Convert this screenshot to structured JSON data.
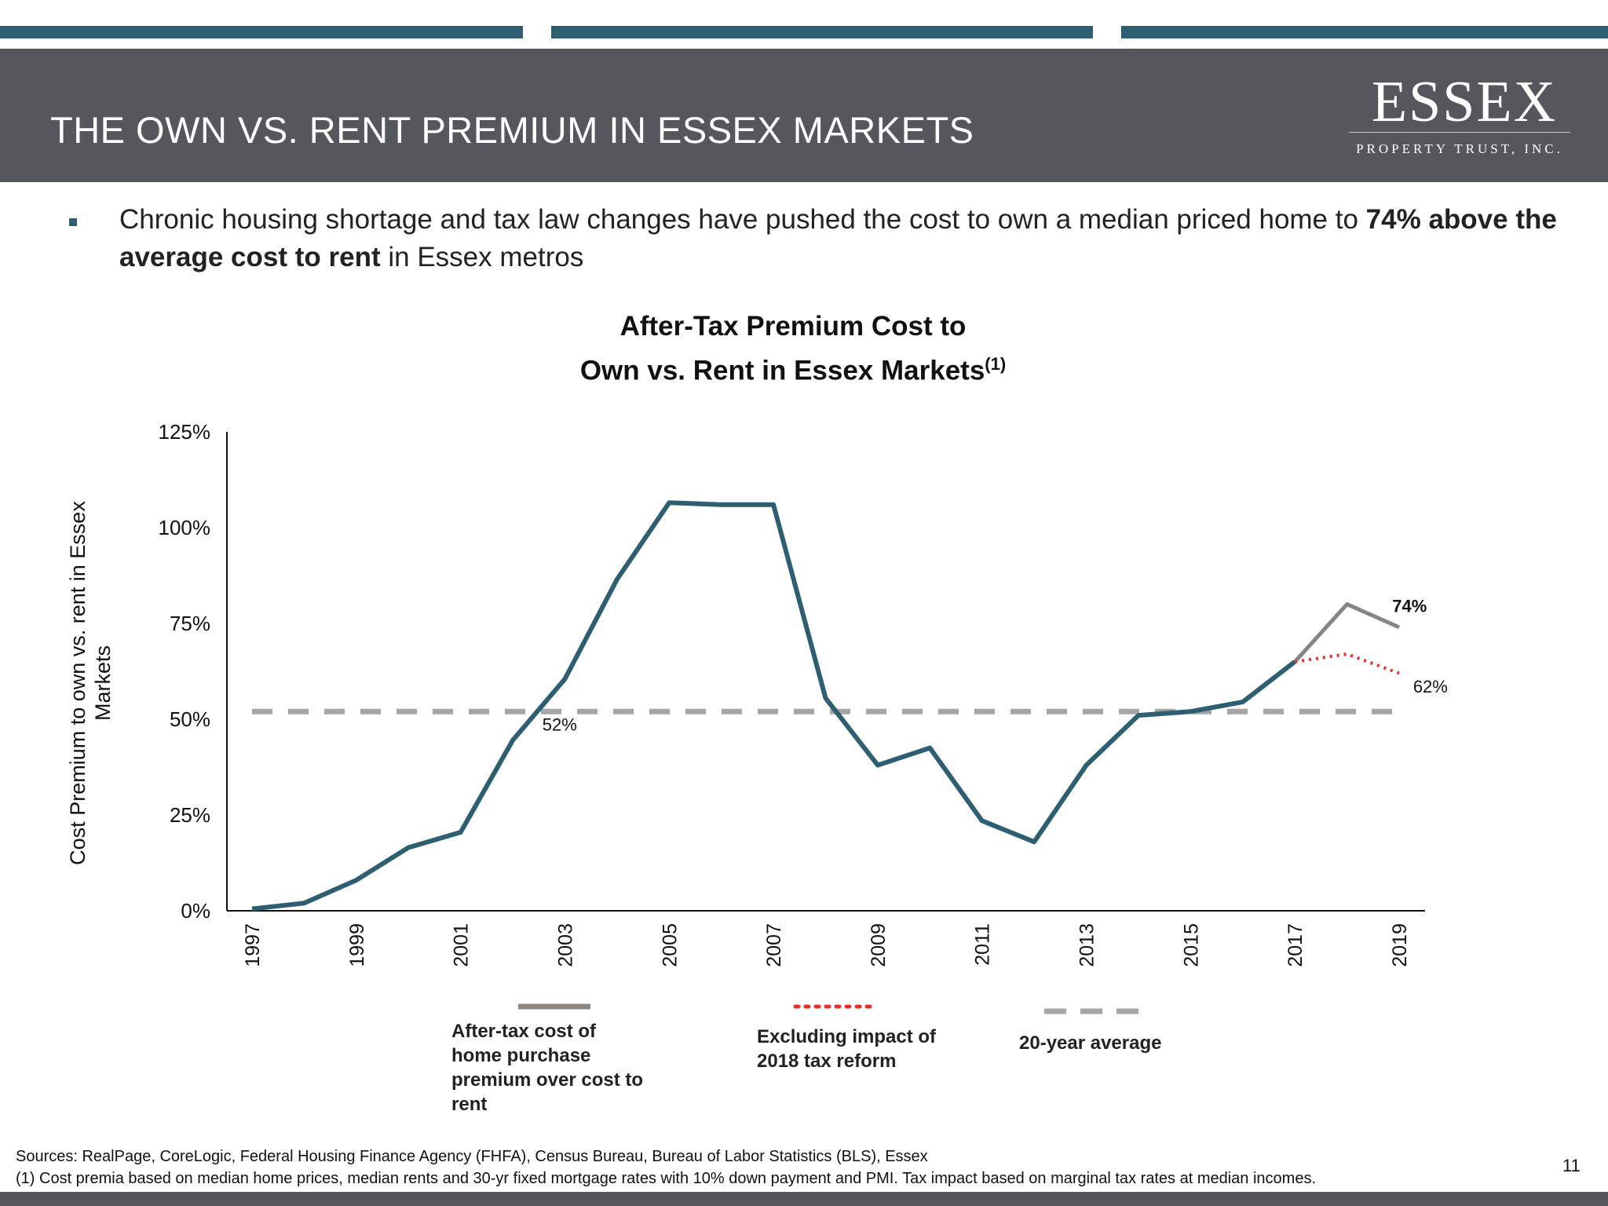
{
  "slide": {
    "title": "THE OWN VS. RENT PREMIUM IN ESSEX MARKETS",
    "logo_name": "ESSEX",
    "logo_sub": "PROPERTY TRUST, INC.",
    "bullet_part1": "Chronic housing shortage and tax law changes have pushed the cost to own a median priced home to ",
    "bullet_bold": "74% above the average cost to rent",
    "bullet_part2": " in Essex metros",
    "sources": "Sources: RealPage, CoreLogic, Federal Housing Finance Agency (FHFA), Census Bureau, Bureau of Labor Statistics (BLS), Essex",
    "footnote": "(1) Cost premia based on median home prices, median rents and 30-yr fixed mortgage rates with 10% down payment and PMI. Tax impact based on marginal tax rates at median incomes.",
    "page_number": "11"
  },
  "colors": {
    "header_bg": "#54575b",
    "accent": "#2d5e72",
    "premium_line": "#2d5e72",
    "after_tax_line": "#858585",
    "excl_tax_reform_line": "#e8302a",
    "average_line": "#a6a6a6"
  },
  "chart_data": {
    "type": "line",
    "title_line1": "After-Tax Premium Cost to",
    "title_line2": "Own vs. Rent in Essex Markets",
    "title_superscript": "(1)",
    "ylabel": "Cost Premium to own vs. rent in Essex Markets",
    "xlabel": "",
    "ylim": [
      0,
      125
    ],
    "y_ticks": [
      0,
      25,
      50,
      75,
      100,
      125
    ],
    "y_tick_labels": [
      "0%",
      "25%",
      "50%",
      "75%",
      "100%",
      "125%"
    ],
    "x_tick_labels": [
      "1997",
      "1999",
      "2001",
      "2003",
      "2005",
      "2007",
      "2009",
      "2011",
      "2013",
      "2015",
      "2017",
      "2019"
    ],
    "grid": false,
    "series": [
      {
        "key": "premium",
        "x": [
          1997,
          1998,
          1999,
          2000,
          2001,
          2002,
          2003,
          2004,
          2005,
          2006,
          2007,
          2008,
          2009,
          2010,
          2011,
          2012,
          2013,
          2014,
          2015,
          2016,
          2017
        ],
        "values": [
          0.5,
          2,
          8,
          16.5,
          20.5,
          44.5,
          60.5,
          86.5,
          106.5,
          106,
          106,
          55.5,
          38,
          42.5,
          23.5,
          18,
          38,
          51,
          52,
          54.5,
          65
        ]
      },
      {
        "key": "after_tax",
        "name": "After-tax cost of home purchase premium over cost to rent",
        "x": [
          2017,
          2018,
          2019
        ],
        "values": [
          65,
          80,
          74
        ]
      },
      {
        "key": "excluding_tax_reform",
        "name": "Excluding impact of 2018 tax reform",
        "x": [
          2017,
          2018,
          2019
        ],
        "values": [
          65,
          67,
          62
        ]
      },
      {
        "key": "average",
        "name": "20-year average",
        "x": [
          1997,
          2019
        ],
        "values": [
          52,
          52
        ]
      }
    ],
    "annotations": [
      {
        "text": "52%",
        "x": 2002.9,
        "y": 47
      },
      {
        "text": "74%",
        "x": 2019.2,
        "y": 78
      },
      {
        "text": "62%",
        "x": 2019.6,
        "y": 57
      }
    ],
    "legend": [
      {
        "key": "after_tax",
        "label_lines": [
          "After-tax cost of",
          "home purchase",
          "premium over cost to",
          "rent"
        ]
      },
      {
        "key": "excluding_tax_reform",
        "label_lines": [
          "Excluding impact of",
          "2018 tax reform"
        ]
      },
      {
        "key": "average",
        "label_lines": [
          "20-year average"
        ]
      }
    ],
    "legend_position": "bottom"
  }
}
